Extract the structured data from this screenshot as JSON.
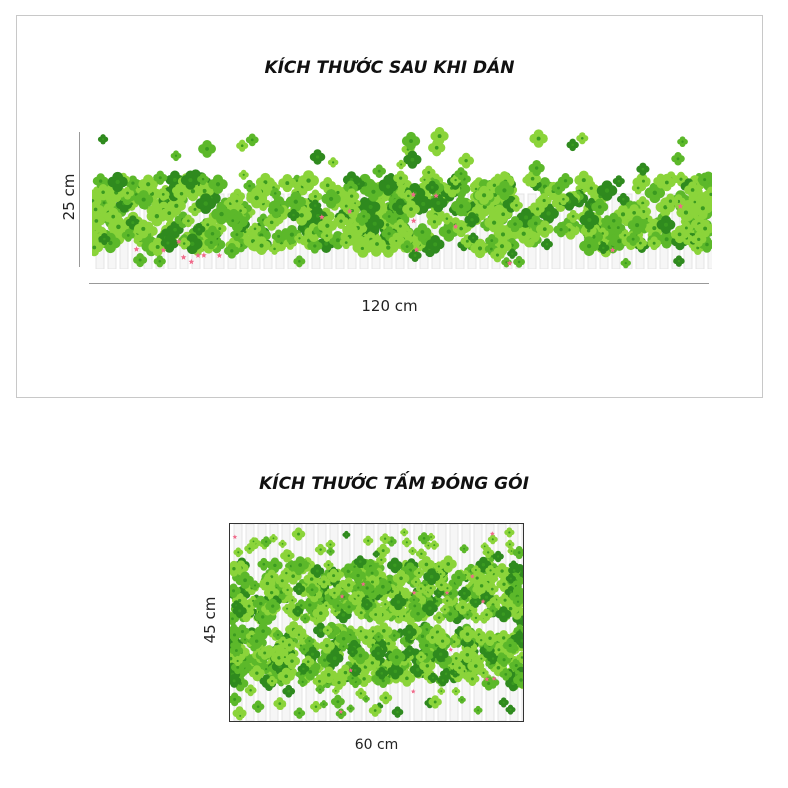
{
  "after_install": {
    "title": "KÍCH THƯỚC SAU KHI DÁN",
    "height_label": "25 cm",
    "width_label": "120 cm"
  },
  "package": {
    "title": "KÍCH THƯỚC TẤM ĐÓNG GÓI",
    "height_label": "45 cm",
    "width_label": "60 cm"
  },
  "colors": {
    "clover_light": "#8bd43a",
    "clover_mid": "#5cb82a",
    "clover_dark": "#2f8a1e",
    "flower_pink": "#f06a8a",
    "fence": "#e4e4e4"
  },
  "icons": [
    "clover-icon",
    "star-flower-icon",
    "fence-icon"
  ]
}
